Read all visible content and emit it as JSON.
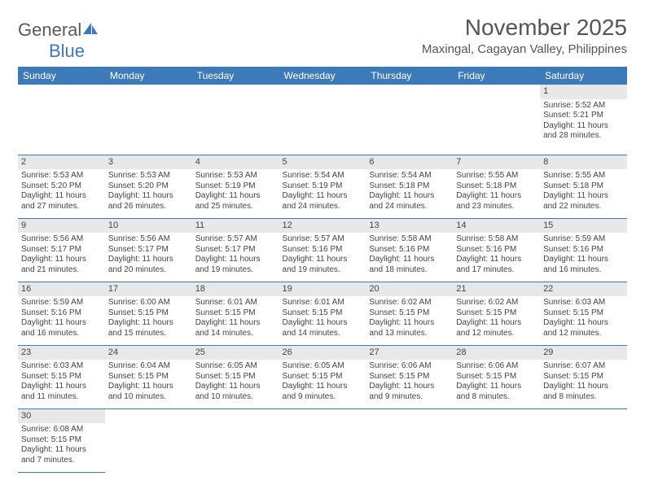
{
  "logo": {
    "word1": "General",
    "word2": "Blue"
  },
  "title": "November 2025",
  "location": "Maxingal, Cagayan Valley, Philippines",
  "colors": {
    "header_bg": "#3d7ab8",
    "header_text": "#ffffff",
    "daynum_bg": "#e8e8e8",
    "border": "#3d7ab8",
    "text": "#444444",
    "title_text": "#555555"
  },
  "day_headers": [
    "Sunday",
    "Monday",
    "Tuesday",
    "Wednesday",
    "Thursday",
    "Friday",
    "Saturday"
  ],
  "weeks": [
    [
      {
        "empty": true
      },
      {
        "empty": true
      },
      {
        "empty": true
      },
      {
        "empty": true
      },
      {
        "empty": true
      },
      {
        "empty": true
      },
      {
        "n": "1",
        "sr": "Sunrise: 5:52 AM",
        "ss": "Sunset: 5:21 PM",
        "d1": "Daylight: 11 hours",
        "d2": "and 28 minutes."
      }
    ],
    [
      {
        "n": "2",
        "sr": "Sunrise: 5:53 AM",
        "ss": "Sunset: 5:20 PM",
        "d1": "Daylight: 11 hours",
        "d2": "and 27 minutes."
      },
      {
        "n": "3",
        "sr": "Sunrise: 5:53 AM",
        "ss": "Sunset: 5:20 PM",
        "d1": "Daylight: 11 hours",
        "d2": "and 26 minutes."
      },
      {
        "n": "4",
        "sr": "Sunrise: 5:53 AM",
        "ss": "Sunset: 5:19 PM",
        "d1": "Daylight: 11 hours",
        "d2": "and 25 minutes."
      },
      {
        "n": "5",
        "sr": "Sunrise: 5:54 AM",
        "ss": "Sunset: 5:19 PM",
        "d1": "Daylight: 11 hours",
        "d2": "and 24 minutes."
      },
      {
        "n": "6",
        "sr": "Sunrise: 5:54 AM",
        "ss": "Sunset: 5:18 PM",
        "d1": "Daylight: 11 hours",
        "d2": "and 24 minutes."
      },
      {
        "n": "7",
        "sr": "Sunrise: 5:55 AM",
        "ss": "Sunset: 5:18 PM",
        "d1": "Daylight: 11 hours",
        "d2": "and 23 minutes."
      },
      {
        "n": "8",
        "sr": "Sunrise: 5:55 AM",
        "ss": "Sunset: 5:18 PM",
        "d1": "Daylight: 11 hours",
        "d2": "and 22 minutes."
      }
    ],
    [
      {
        "n": "9",
        "sr": "Sunrise: 5:56 AM",
        "ss": "Sunset: 5:17 PM",
        "d1": "Daylight: 11 hours",
        "d2": "and 21 minutes."
      },
      {
        "n": "10",
        "sr": "Sunrise: 5:56 AM",
        "ss": "Sunset: 5:17 PM",
        "d1": "Daylight: 11 hours",
        "d2": "and 20 minutes."
      },
      {
        "n": "11",
        "sr": "Sunrise: 5:57 AM",
        "ss": "Sunset: 5:17 PM",
        "d1": "Daylight: 11 hours",
        "d2": "and 19 minutes."
      },
      {
        "n": "12",
        "sr": "Sunrise: 5:57 AM",
        "ss": "Sunset: 5:16 PM",
        "d1": "Daylight: 11 hours",
        "d2": "and 19 minutes."
      },
      {
        "n": "13",
        "sr": "Sunrise: 5:58 AM",
        "ss": "Sunset: 5:16 PM",
        "d1": "Daylight: 11 hours",
        "d2": "and 18 minutes."
      },
      {
        "n": "14",
        "sr": "Sunrise: 5:58 AM",
        "ss": "Sunset: 5:16 PM",
        "d1": "Daylight: 11 hours",
        "d2": "and 17 minutes."
      },
      {
        "n": "15",
        "sr": "Sunrise: 5:59 AM",
        "ss": "Sunset: 5:16 PM",
        "d1": "Daylight: 11 hours",
        "d2": "and 16 minutes."
      }
    ],
    [
      {
        "n": "16",
        "sr": "Sunrise: 5:59 AM",
        "ss": "Sunset: 5:16 PM",
        "d1": "Daylight: 11 hours",
        "d2": "and 16 minutes."
      },
      {
        "n": "17",
        "sr": "Sunrise: 6:00 AM",
        "ss": "Sunset: 5:15 PM",
        "d1": "Daylight: 11 hours",
        "d2": "and 15 minutes."
      },
      {
        "n": "18",
        "sr": "Sunrise: 6:01 AM",
        "ss": "Sunset: 5:15 PM",
        "d1": "Daylight: 11 hours",
        "d2": "and 14 minutes."
      },
      {
        "n": "19",
        "sr": "Sunrise: 6:01 AM",
        "ss": "Sunset: 5:15 PM",
        "d1": "Daylight: 11 hours",
        "d2": "and 14 minutes."
      },
      {
        "n": "20",
        "sr": "Sunrise: 6:02 AM",
        "ss": "Sunset: 5:15 PM",
        "d1": "Daylight: 11 hours",
        "d2": "and 13 minutes."
      },
      {
        "n": "21",
        "sr": "Sunrise: 6:02 AM",
        "ss": "Sunset: 5:15 PM",
        "d1": "Daylight: 11 hours",
        "d2": "and 12 minutes."
      },
      {
        "n": "22",
        "sr": "Sunrise: 6:03 AM",
        "ss": "Sunset: 5:15 PM",
        "d1": "Daylight: 11 hours",
        "d2": "and 12 minutes."
      }
    ],
    [
      {
        "n": "23",
        "sr": "Sunrise: 6:03 AM",
        "ss": "Sunset: 5:15 PM",
        "d1": "Daylight: 11 hours",
        "d2": "and 11 minutes."
      },
      {
        "n": "24",
        "sr": "Sunrise: 6:04 AM",
        "ss": "Sunset: 5:15 PM",
        "d1": "Daylight: 11 hours",
        "d2": "and 10 minutes."
      },
      {
        "n": "25",
        "sr": "Sunrise: 6:05 AM",
        "ss": "Sunset: 5:15 PM",
        "d1": "Daylight: 11 hours",
        "d2": "and 10 minutes."
      },
      {
        "n": "26",
        "sr": "Sunrise: 6:05 AM",
        "ss": "Sunset: 5:15 PM",
        "d1": "Daylight: 11 hours",
        "d2": "and 9 minutes."
      },
      {
        "n": "27",
        "sr": "Sunrise: 6:06 AM",
        "ss": "Sunset: 5:15 PM",
        "d1": "Daylight: 11 hours",
        "d2": "and 9 minutes."
      },
      {
        "n": "28",
        "sr": "Sunrise: 6:06 AM",
        "ss": "Sunset: 5:15 PM",
        "d1": "Daylight: 11 hours",
        "d2": "and 8 minutes."
      },
      {
        "n": "29",
        "sr": "Sunrise: 6:07 AM",
        "ss": "Sunset: 5:15 PM",
        "d1": "Daylight: 11 hours",
        "d2": "and 8 minutes."
      }
    ],
    [
      {
        "n": "30",
        "sr": "Sunrise: 6:08 AM",
        "ss": "Sunset: 5:15 PM",
        "d1": "Daylight: 11 hours",
        "d2": "and 7 minutes."
      },
      {
        "empty": true
      },
      {
        "empty": true
      },
      {
        "empty": true
      },
      {
        "empty": true
      },
      {
        "empty": true
      },
      {
        "empty": true
      }
    ]
  ]
}
